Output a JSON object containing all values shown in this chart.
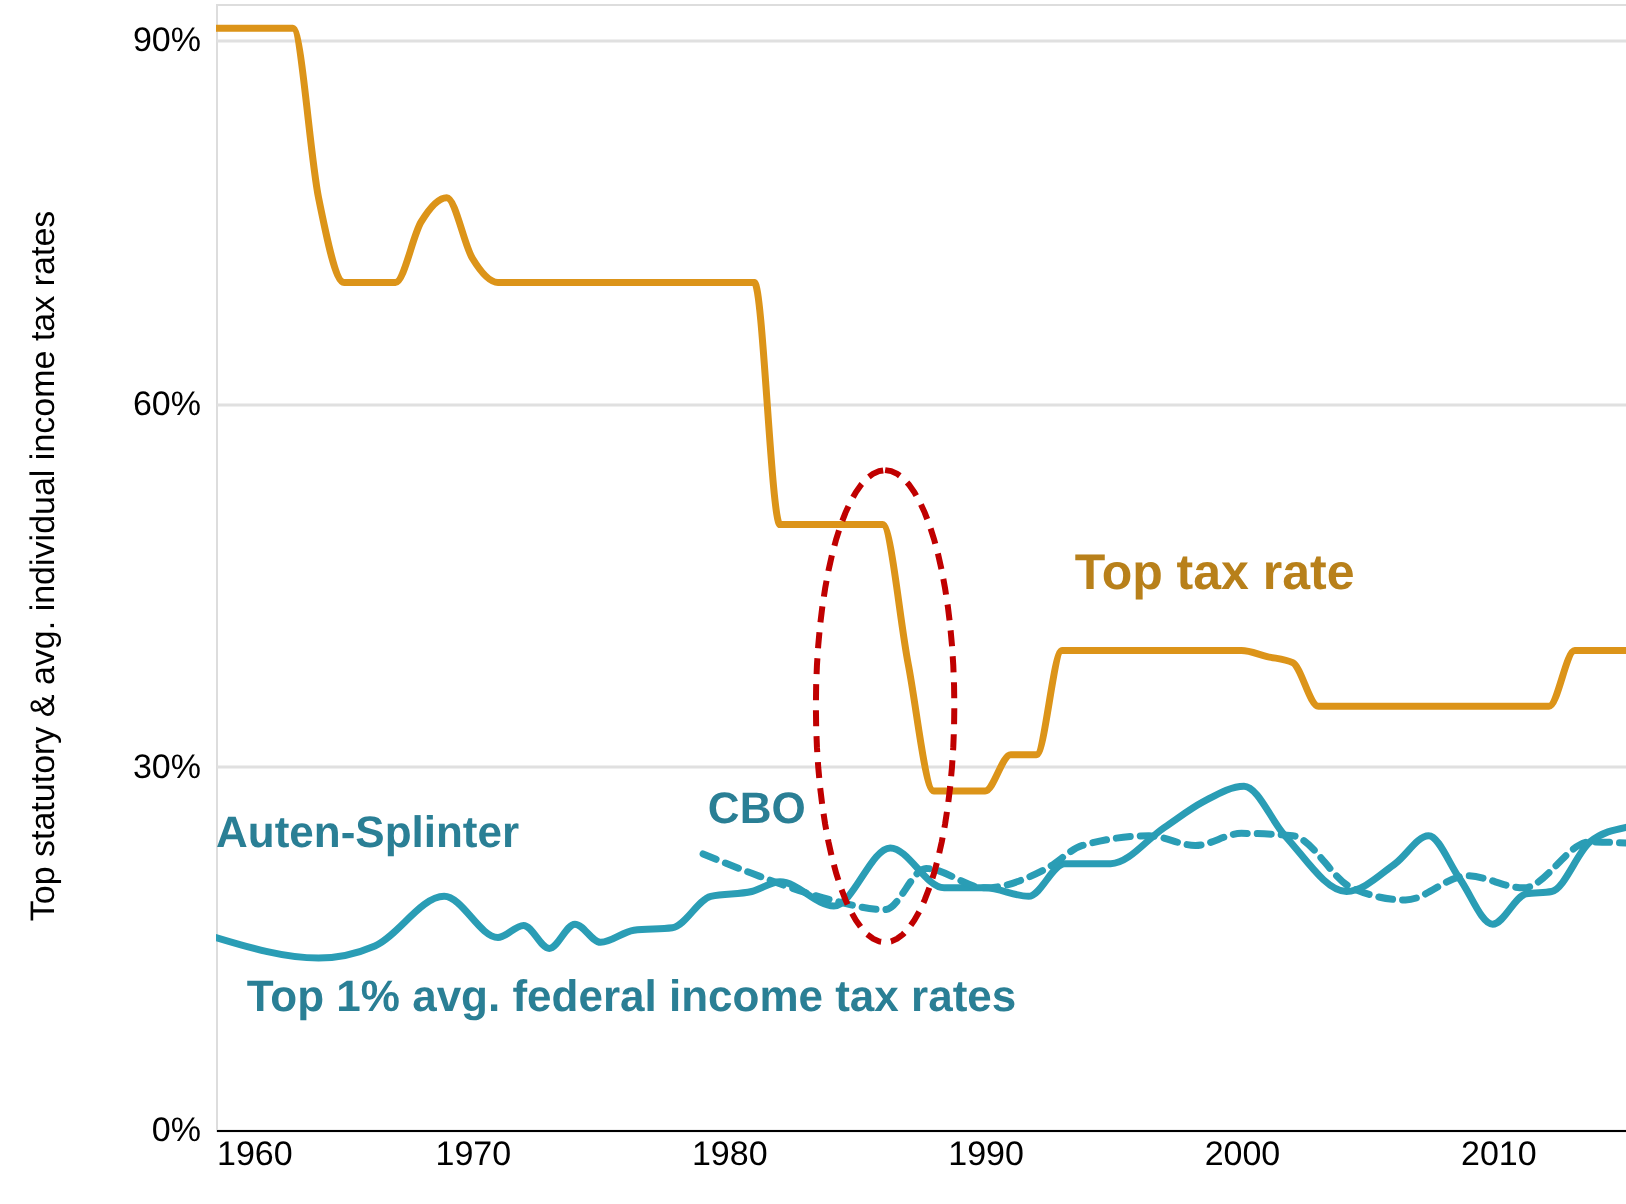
{
  "chart_data": {
    "type": "line",
    "ylabel": "Top statutory & avg. individual income tax rates",
    "xlim": [
      1960,
      2015
    ],
    "xticks": [
      1960,
      1970,
      1980,
      1990,
      2000,
      2010
    ],
    "ylim": [
      0,
      93
    ],
    "yticks": [
      {
        "value": 0,
        "label": "0%"
      },
      {
        "value": 30,
        "label": "30%"
      },
      {
        "value": 60,
        "label": "60%"
      },
      {
        "value": 90,
        "label": "90%"
      }
    ],
    "grid": "y",
    "marker": "none",
    "series": [
      {
        "name": "Top tax rate",
        "color": "#dc9419",
        "x": [
          1960,
          1961,
          1962,
          1963,
          1964,
          1965,
          1966,
          1967,
          1968,
          1969,
          1970,
          1971,
          1972,
          1973,
          1974,
          1975,
          1976,
          1977,
          1978,
          1979,
          1980,
          1981,
          1982,
          1983,
          1984,
          1985,
          1986,
          1987,
          1988,
          1989,
          1990,
          1991,
          1992,
          1993,
          1994,
          1995,
          1996,
          1997,
          1998,
          1999,
          2000,
          2001,
          2002,
          2003,
          2004,
          2005,
          2006,
          2007,
          2008,
          2009,
          2010,
          2011,
          2012,
          2013,
          2014,
          2015
        ],
        "values": [
          91,
          91,
          91,
          91,
          77,
          70,
          70,
          70,
          75,
          77,
          72,
          70,
          70,
          70,
          70,
          70,
          70,
          70,
          70,
          70,
          70,
          70,
          50,
          50,
          50,
          50,
          50,
          38.5,
          28,
          28,
          28,
          31,
          31,
          39.6,
          39.6,
          39.6,
          39.6,
          39.6,
          39.6,
          39.6,
          39.6,
          39.1,
          38.6,
          35,
          35,
          35,
          35,
          35,
          35,
          35,
          35,
          35,
          35,
          39.6,
          39.6,
          39.6
        ]
      },
      {
        "name": "Auten-Splinter",
        "color": "#2a9db5",
        "line_style": "solid",
        "x": [
          1960,
          1964,
          1966.2,
          1968.9,
          1971,
          1972,
          1973,
          1974,
          1975,
          1976.3,
          1977.8,
          1979.3,
          1980.9,
          1982,
          1984.1,
          1986.3,
          1988.4,
          1990,
          1991.7,
          1993.1,
          1994.9,
          1997,
          1998.5,
          2000.1,
          2001.7,
          2004.1,
          2006,
          2007.3,
          2008.5,
          2009.8,
          2011.1,
          2012.1,
          2013.6,
          2015
        ],
        "values": [
          15.9,
          14.2,
          15.2,
          19.3,
          15.9,
          16.9,
          15,
          17,
          15.5,
          16.5,
          16.7,
          19.3,
          19.7,
          20.5,
          18.5,
          23.3,
          20,
          20,
          19.3,
          22,
          22,
          25,
          27.1,
          28.4,
          24.3,
          19.7,
          22,
          24.3,
          20.8,
          17,
          19.5,
          19.7,
          23.8,
          25
        ]
      },
      {
        "name": "CBO",
        "color": "#2a9db5",
        "line_style": "dashed",
        "x": [
          1979,
          1980.9,
          1984,
          1986.1,
          1987.7,
          1990,
          1992.4,
          1993.8,
          1996.4,
          1998.2,
          2000,
          2002,
          2004.3,
          2006.4,
          2008.8,
          2011,
          2013.6,
          2015
        ],
        "values": [
          22.8,
          21.2,
          19,
          18.2,
          21.6,
          20,
          21.6,
          23.5,
          24.3,
          23.5,
          24.5,
          24.3,
          20,
          19,
          21,
          20,
          23.8,
          23.7
        ]
      }
    ],
    "annotations": [
      "Top 1% avg. federal income tax rates"
    ]
  }
}
